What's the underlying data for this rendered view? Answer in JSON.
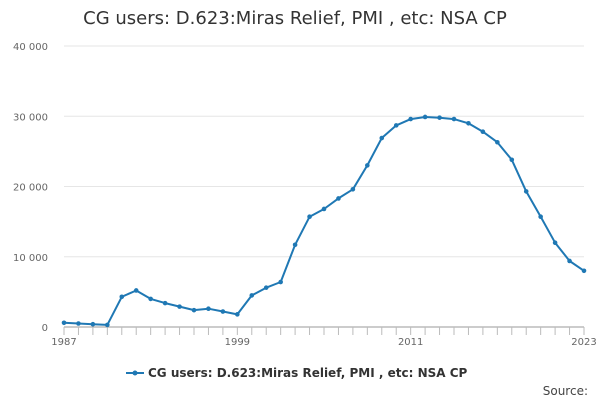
{
  "chart_data": {
    "type": "line",
    "title": "CG users: D.623:Miras Relief, PMI , etc: NSA CP",
    "xlabel": "",
    "ylabel": "",
    "x": [
      1987,
      1988,
      1989,
      1990,
      1991,
      1992,
      1993,
      1994,
      1995,
      1996,
      1997,
      1998,
      1999,
      2000,
      2001,
      2002,
      2003,
      2004,
      2005,
      2006,
      2007,
      2008,
      2009,
      2010,
      2011,
      2012,
      2013,
      2014,
      2015,
      2016,
      2017,
      2018,
      2019,
      2020,
      2021,
      2022,
      2023
    ],
    "series": [
      {
        "name": "CG users: D.623:Miras Relief, PMI , etc: NSA CP",
        "color": "#1f78b4",
        "values": [
          600,
          500,
          400,
          300,
          4300,
          5200,
          4000,
          3400,
          2900,
          2400,
          2600,
          2200,
          1800,
          4500,
          5600,
          6400,
          11700,
          15700,
          16800,
          18300,
          19600,
          23000,
          26900,
          28700,
          29600,
          29900,
          29800,
          29600,
          29000,
          27800,
          26300,
          23800,
          19300,
          15700,
          12000,
          9400,
          8000
        ]
      }
    ],
    "xlim": [
      1987,
      2023
    ],
    "ylim": [
      0,
      40000
    ],
    "y_ticks": [
      0,
      10000,
      20000,
      30000,
      40000
    ],
    "y_tick_labels": [
      "0",
      "10 000",
      "20 000",
      "30 000",
      "40 000"
    ],
    "x_tick_labels": [
      "1987",
      "1999",
      "2011",
      "2023"
    ],
    "grid": "horizontal",
    "legend_position": "bottom",
    "source_label": "Source:"
  }
}
